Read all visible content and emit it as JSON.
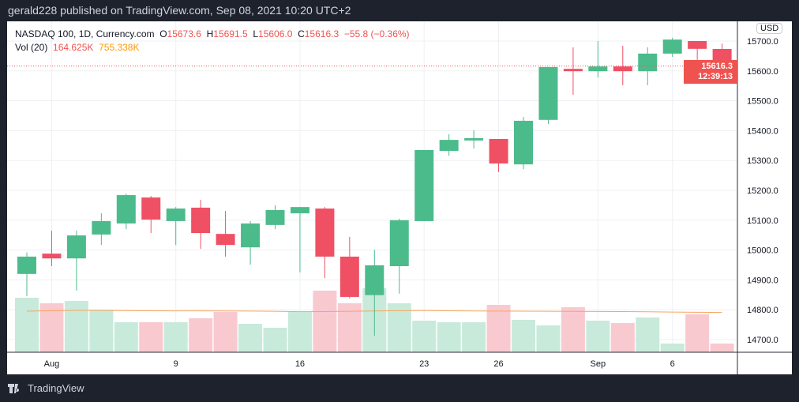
{
  "header": "gerald228 published on TradingView.com, Sep 08, 2021 10:20 UTC+2",
  "legend": {
    "symbol": "NASDAQ 100, 1D, Currency.com",
    "o": "O",
    "ov": "15673.6",
    "h": "H",
    "hv": "15691.5",
    "l": "L",
    "lv": "15606.0",
    "c": "C",
    "cv": "15616.3",
    "chg": "−55.8 (−0.36%)",
    "vol_label": "Vol (20)",
    "vol": "164.625K",
    "vol_ma": "755.338K"
  },
  "currency": "USD",
  "last_price": "15616.3",
  "countdown": "12:39:13",
  "brand": "TradingView",
  "colors": {
    "up": "#4cbb8b",
    "down": "#ef5064",
    "vol_up": "#c8eadb",
    "vol_down": "#f9c9d0",
    "ma": "#f7a55d"
  },
  "chart_data": {
    "type": "candlestick",
    "ylim": [
      14650,
      15760
    ],
    "yticks": [
      14700,
      14800,
      14900,
      15000,
      15100,
      15200,
      15300,
      15400,
      15500,
      15600,
      15700
    ],
    "xticks": [
      {
        "i": 1,
        "label": "Aug"
      },
      {
        "i": 6,
        "label": "9"
      },
      {
        "i": 11,
        "label": "16"
      },
      {
        "i": 16,
        "label": "23"
      },
      {
        "i": 19,
        "label": "26"
      },
      {
        "i": 23,
        "label": "Sep"
      },
      {
        "i": 26,
        "label": "6"
      }
    ],
    "ohlc": [
      [
        14920,
        14978,
        14992,
        14846
      ],
      [
        14988,
        14972,
        15065,
        14946
      ],
      [
        14972,
        15049,
        15065,
        14864
      ],
      [
        15052,
        15097,
        15123,
        15017
      ],
      [
        15089,
        15184,
        15189,
        15070
      ],
      [
        15176,
        15102,
        15181,
        15057
      ],
      [
        15097,
        15139,
        15144,
        15017
      ],
      [
        15142,
        15057,
        15168,
        15004
      ],
      [
        15054,
        15017,
        15131,
        14978
      ],
      [
        15009,
        15089,
        15097,
        14951
      ],
      [
        15084,
        15134,
        15150,
        15070
      ],
      [
        15123,
        15144,
        15144,
        14925
      ],
      [
        15139,
        14978,
        15144,
        14906
      ],
      [
        14978,
        14843,
        15044,
        14838
      ],
      [
        14849,
        14949,
        15001,
        14713
      ],
      [
        14946,
        15100,
        15105,
        14854
      ],
      [
        15097,
        15335,
        15335,
        15097
      ],
      [
        15332,
        15369,
        15388,
        15316
      ],
      [
        15367,
        15375,
        15401,
        15340
      ],
      [
        15372,
        15290,
        15372,
        15261
      ],
      [
        15287,
        15433,
        15446,
        15271
      ],
      [
        15436,
        15613,
        15613,
        15422
      ],
      [
        15607,
        15599,
        15679,
        15520
      ],
      [
        15599,
        15615,
        15700,
        15578
      ],
      [
        15615,
        15599,
        15684,
        15552
      ],
      [
        15599,
        15658,
        15679,
        15552
      ],
      [
        15658,
        15705,
        15711,
        15647
      ],
      [
        15700,
        15674,
        15700,
        15607
      ],
      [
        15673.6,
        15616.3,
        15691.5,
        15606.0
      ]
    ],
    "volume_k": [
      1035,
      930,
      975,
      810,
      570,
      570,
      570,
      645,
      765,
      540,
      465,
      765,
      1170,
      930,
      1215,
      930,
      600,
      570,
      570,
      900,
      615,
      510,
      855,
      600,
      555,
      660,
      165,
      720,
      164.625
    ],
    "volume_ma_k": [
      780,
      790,
      795,
      795,
      790,
      788,
      786,
      785,
      784,
      782,
      778,
      770,
      772,
      778,
      783,
      790,
      792,
      788,
      784,
      782,
      780,
      778,
      776,
      775,
      772,
      768,
      764,
      760,
      755.338
    ]
  }
}
